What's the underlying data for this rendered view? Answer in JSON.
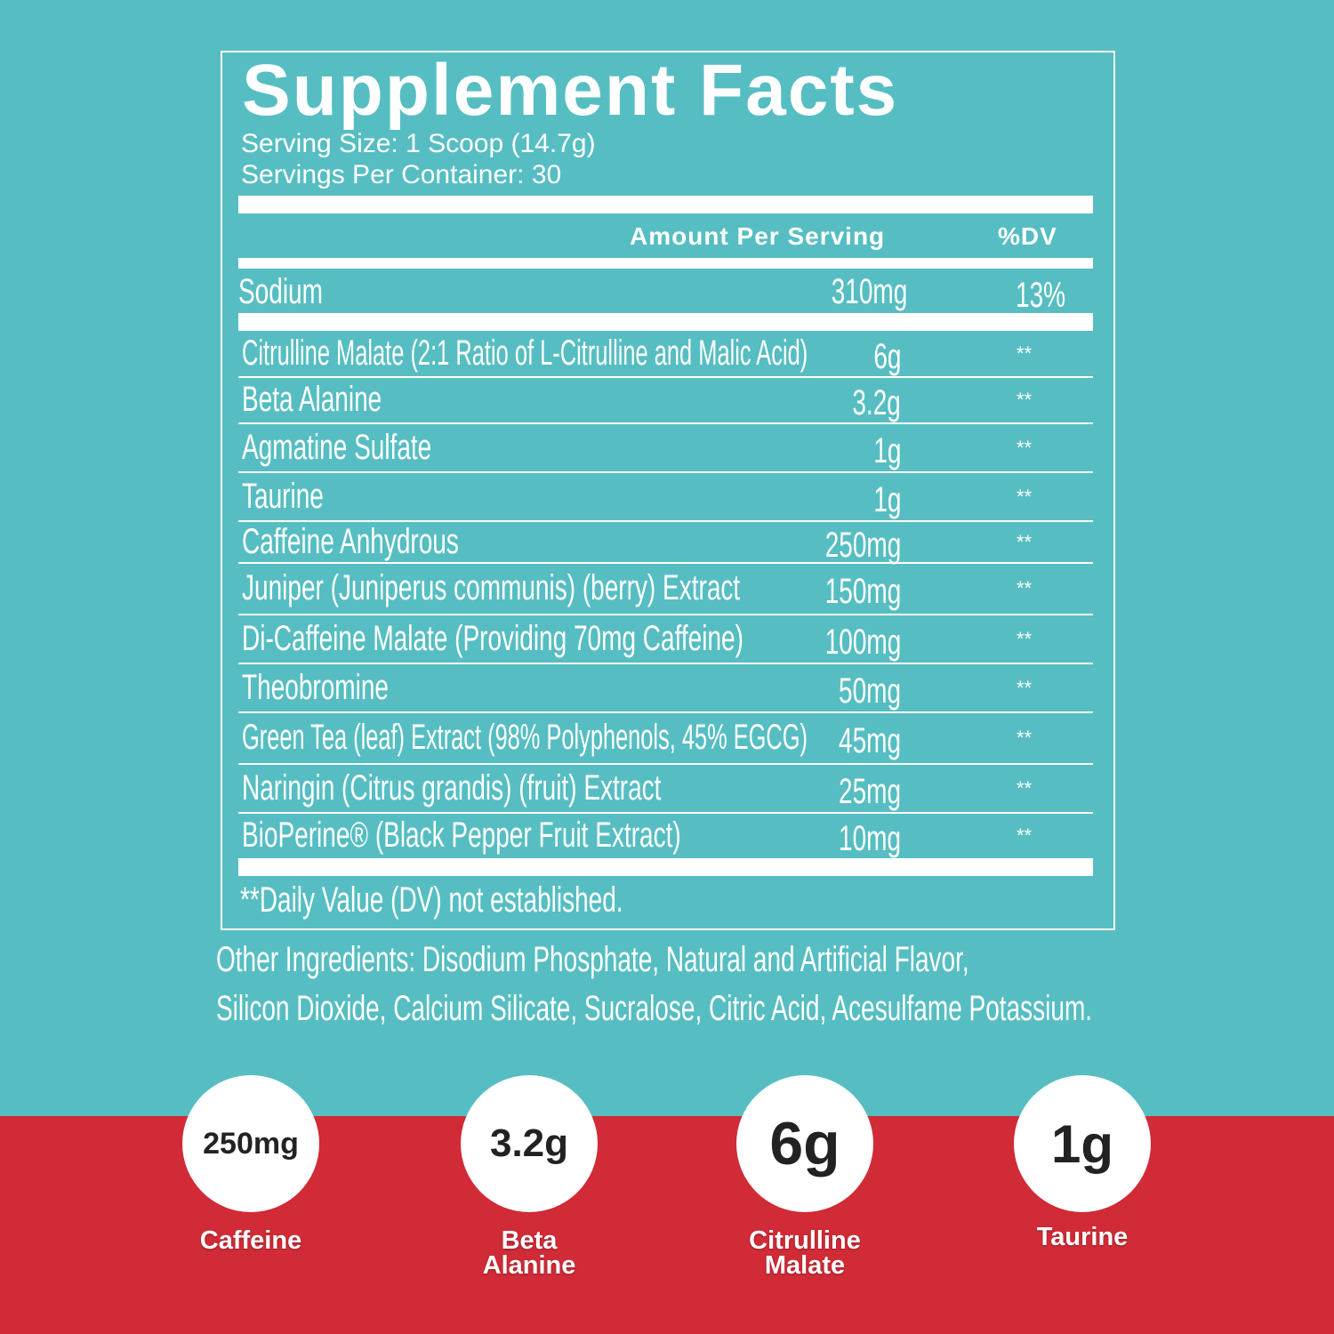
{
  "colors": {
    "background": "#56bec2",
    "band": "#d02b36",
    "text": "#ffffff",
    "circle_text": "#222222"
  },
  "label": {
    "title": "Supplement Facts",
    "serving_size": "Serving Size: 1 Scoop (14.7g)",
    "servings_per_container": "Servings Per Container: 30",
    "header_amount": "Amount Per Serving",
    "header_dv": "%DV",
    "sodium": {
      "name": "Sodium",
      "amount": "310mg",
      "dv": "13%"
    },
    "rows": [
      {
        "name": "Citrulline Malate (2:1 Ratio of L-Citrulline and Malic Acid)",
        "amount": "6g",
        "dv": "**"
      },
      {
        "name": "Beta Alanine",
        "amount": "3.2g",
        "dv": "**"
      },
      {
        "name": "Agmatine Sulfate",
        "amount": "1g",
        "dv": "**"
      },
      {
        "name": "Taurine",
        "amount": "1g",
        "dv": "**"
      },
      {
        "name": "Caffeine Anhydrous",
        "amount": "250mg",
        "dv": "**"
      },
      {
        "name": "Juniper (Juniperus communis) (berry) Extract",
        "amount": "150mg",
        "dv": "**"
      },
      {
        "name": "Di-Caffeine Malate (Providing 70mg Caffeine)",
        "amount": "100mg",
        "dv": "**"
      },
      {
        "name": "Theobromine",
        "amount": "50mg",
        "dv": "**"
      },
      {
        "name": "Green Tea (leaf) Extract (98% Polyphenols, 45% EGCG)",
        "amount": "45mg",
        "dv": "**"
      },
      {
        "name": "Naringin (Citrus grandis) (fruit) Extract",
        "amount": "25mg",
        "dv": "**"
      },
      {
        "name": "BioPerine® (Black Pepper Fruit Extract)",
        "amount": "10mg",
        "dv": "**"
      }
    ],
    "footnote": "**Daily Value (DV) not established."
  },
  "other_ingredients": {
    "line1": "Other Ingredients: Disodium Phosphate, Natural and Artificial Flavor,",
    "line2": "Silicon Dioxide, Calcium Silicate, Sucralose, Citric Acid, Acesulfame Potassium."
  },
  "highlights": [
    {
      "value": "250mg",
      "label": "Caffeine"
    },
    {
      "value": "3.2g",
      "label": "Beta Alanine"
    },
    {
      "value": "6g",
      "label": "Citrulline Malate"
    },
    {
      "value": "1g",
      "label": "Taurine"
    }
  ]
}
